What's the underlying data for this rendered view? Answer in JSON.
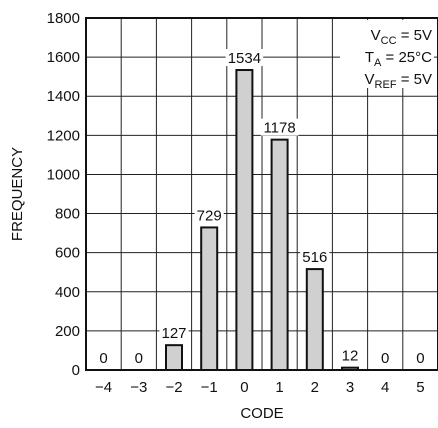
{
  "chart_data": {
    "type": "bar",
    "xlabel": "CODE",
    "ylabel": "FREQUENCY",
    "categories": [
      "−4",
      "−3",
      "−2",
      "−1",
      "0",
      "1",
      "2",
      "3",
      "4",
      "5"
    ],
    "values": [
      0,
      0,
      127,
      729,
      1534,
      1178,
      516,
      12,
      0,
      0
    ],
    "data_labels": [
      "0",
      "0",
      "127",
      "729",
      "1534",
      "1178",
      "516",
      "12",
      "0",
      "0"
    ],
    "ylim": [
      0,
      1800
    ],
    "yticks": [
      0,
      200,
      400,
      600,
      800,
      1000,
      1200,
      1400,
      1600,
      1800
    ],
    "ytick_labels": [
      "0",
      "200",
      "400",
      "600",
      "800",
      "1000",
      "1200",
      "1400",
      "1600",
      "1800"
    ],
    "grid": true,
    "bar_color": "#d0d0d0",
    "annotations": [
      {
        "main": "V",
        "sub": "CC",
        "rest": " = 5V"
      },
      {
        "main": "T",
        "sub": "A",
        "rest": " = 25°C"
      },
      {
        "main": "V",
        "sub": "REF",
        "rest": " = 5V"
      }
    ]
  }
}
